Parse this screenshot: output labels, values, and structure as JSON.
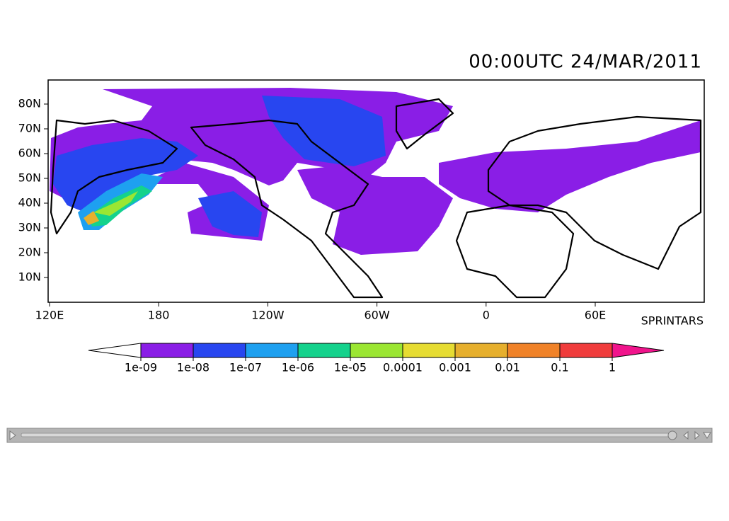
{
  "title": "00:00UTC 24/MAR/2011",
  "map": {
    "lat_labels": [
      "80N",
      "70N",
      "60N",
      "50N",
      "40N",
      "30N",
      "20N",
      "10N"
    ],
    "lon_labels": [
      "120E",
      "180",
      "120W",
      "60W",
      "0",
      "60E"
    ],
    "credit": "SPRINTARS"
  },
  "colorbar": {
    "labels": [
      "1e-09",
      "1e-08",
      "1e-07",
      "1e-06",
      "1e-05",
      "0.0001",
      "0.001",
      "0.01",
      "0.1",
      "1"
    ],
    "colors": [
      "#ffffff",
      "#8a1ee6",
      "#2846f0",
      "#1ea0f0",
      "#14d28c",
      "#9be632",
      "#e6dc32",
      "#e6af2d",
      "#f08228",
      "#f03c3c",
      "#f0148c"
    ]
  }
}
